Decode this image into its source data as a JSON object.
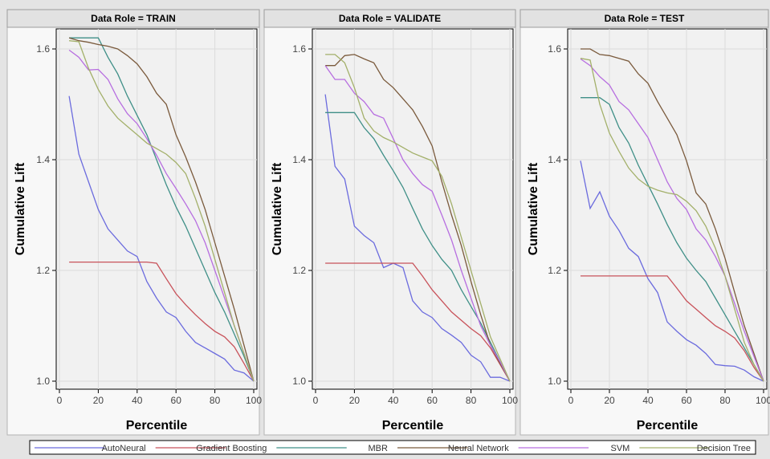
{
  "legend_title": "",
  "chart_data": {
    "type": "line",
    "xlabel": "Percentile",
    "ylabel": "Cumulative Lift",
    "xlim": [
      0,
      100
    ],
    "ylim": [
      1.0,
      1.6
    ],
    "xticks": [
      "0",
      "20",
      "40",
      "60",
      "80",
      "100"
    ],
    "yticks": [
      "1.0",
      "1.2",
      "1.4",
      "1.6"
    ],
    "grid": true,
    "legend_position": "bottom",
    "series_order": [
      "AutoNeural",
      "Gradient Boosting",
      "MBR",
      "Neural Network",
      "SVM",
      "Decision Tree"
    ],
    "colors": {
      "AutoNeural": "#6b6bde",
      "Gradient Boosting": "#c8525a",
      "MBR": "#3f8f87",
      "Neural Network": "#7a5a3c",
      "SVM": "#b76ee0",
      "Decision Tree": "#a3b06a"
    },
    "panels": [
      {
        "title": "Data Role = TRAIN",
        "series": [
          {
            "name": "AutoNeural",
            "x": [
              5,
              10,
              15,
              20,
              25,
              30,
              35,
              40,
              45,
              50,
              55,
              60,
              65,
              70,
              75,
              80,
              85,
              90,
              95,
              100
            ],
            "values": [
              1.515,
              1.41,
              1.36,
              1.31,
              1.275,
              1.255,
              1.235,
              1.225,
              1.18,
              1.15,
              1.125,
              1.115,
              1.09,
              1.07,
              1.06,
              1.05,
              1.04,
              1.02,
              1.015,
              1.0
            ]
          },
          {
            "name": "Gradient Boosting",
            "x": [
              5,
              10,
              15,
              20,
              25,
              30,
              35,
              40,
              45,
              50,
              55,
              60,
              65,
              70,
              75,
              80,
              85,
              90,
              95,
              100
            ],
            "values": [
              1.215,
              1.215,
              1.215,
              1.215,
              1.215,
              1.215,
              1.215,
              1.215,
              1.215,
              1.213,
              1.185,
              1.158,
              1.138,
              1.12,
              1.104,
              1.09,
              1.08,
              1.062,
              1.032,
              1.0
            ]
          },
          {
            "name": "MBR",
            "x": [
              5,
              10,
              15,
              20,
              25,
              30,
              35,
              40,
              45,
              50,
              55,
              60,
              65,
              70,
              75,
              80,
              85,
              90,
              95,
              100
            ],
            "values": [
              1.62,
              1.62,
              1.62,
              1.62,
              1.585,
              1.555,
              1.515,
              1.48,
              1.445,
              1.4,
              1.355,
              1.315,
              1.28,
              1.24,
              1.2,
              1.16,
              1.125,
              1.085,
              1.045,
              1.0
            ]
          },
          {
            "name": "Neural Network",
            "x": [
              5,
              10,
              15,
              20,
              25,
              30,
              35,
              40,
              45,
              50,
              55,
              60,
              65,
              70,
              75,
              80,
              85,
              90,
              95,
              100
            ],
            "values": [
              1.62,
              1.615,
              1.612,
              1.608,
              1.605,
              1.6,
              1.588,
              1.573,
              1.55,
              1.52,
              1.5,
              1.445,
              1.405,
              1.36,
              1.31,
              1.25,
              1.19,
              1.13,
              1.065,
              1.0
            ]
          },
          {
            "name": "SVM",
            "x": [
              5,
              10,
              15,
              20,
              25,
              30,
              35,
              40,
              45,
              50,
              55,
              60,
              65,
              70,
              75,
              80,
              85,
              90,
              95,
              100
            ],
            "values": [
              1.598,
              1.585,
              1.562,
              1.563,
              1.545,
              1.51,
              1.483,
              1.465,
              1.438,
              1.408,
              1.375,
              1.348,
              1.32,
              1.29,
              1.25,
              1.2,
              1.15,
              1.1,
              1.05,
              1.0
            ]
          },
          {
            "name": "Decision Tree",
            "x": [
              5,
              10,
              15,
              20,
              25,
              30,
              35,
              40,
              45,
              50,
              55,
              60,
              65,
              70,
              75,
              80,
              85,
              90,
              95,
              100
            ],
            "values": [
              1.615,
              1.613,
              1.565,
              1.527,
              1.497,
              1.475,
              1.46,
              1.445,
              1.43,
              1.42,
              1.41,
              1.395,
              1.375,
              1.33,
              1.28,
              1.22,
              1.16,
              1.1,
              1.05,
              1.0
            ]
          }
        ]
      },
      {
        "title": "Data Role = VALIDATE",
        "series": [
          {
            "name": "AutoNeural",
            "x": [
              5,
              10,
              15,
              20,
              25,
              30,
              35,
              40,
              45,
              50,
              55,
              60,
              65,
              70,
              75,
              80,
              85,
              90,
              95,
              100
            ],
            "values": [
              1.518,
              1.388,
              1.365,
              1.28,
              1.263,
              1.25,
              1.205,
              1.213,
              1.205,
              1.145,
              1.125,
              1.115,
              1.095,
              1.083,
              1.07,
              1.047,
              1.035,
              1.007,
              1.007,
              1.0
            ]
          },
          {
            "name": "Gradient Boosting",
            "x": [
              5,
              10,
              15,
              20,
              25,
              30,
              35,
              40,
              45,
              50,
              55,
              60,
              65,
              70,
              75,
              80,
              85,
              90,
              95,
              100
            ],
            "values": [
              1.213,
              1.213,
              1.213,
              1.213,
              1.213,
              1.213,
              1.213,
              1.213,
              1.213,
              1.213,
              1.19,
              1.165,
              1.145,
              1.125,
              1.11,
              1.095,
              1.082,
              1.06,
              1.03,
              1.0
            ]
          },
          {
            "name": "MBR",
            "x": [
              5,
              10,
              15,
              20,
              25,
              30,
              35,
              40,
              45,
              50,
              55,
              60,
              65,
              70,
              75,
              80,
              85,
              90,
              95,
              100
            ],
            "values": [
              1.485,
              1.485,
              1.485,
              1.485,
              1.458,
              1.438,
              1.408,
              1.38,
              1.35,
              1.312,
              1.275,
              1.245,
              1.22,
              1.2,
              1.165,
              1.135,
              1.105,
              1.07,
              1.035,
              1.0
            ]
          },
          {
            "name": "Neural Network",
            "x": [
              5,
              10,
              15,
              20,
              25,
              30,
              35,
              40,
              45,
              50,
              55,
              60,
              65,
              70,
              75,
              80,
              85,
              90,
              95,
              100
            ],
            "values": [
              1.57,
              1.57,
              1.588,
              1.59,
              1.582,
              1.575,
              1.545,
              1.53,
              1.51,
              1.49,
              1.46,
              1.425,
              1.36,
              1.3,
              1.245,
              1.18,
              1.12,
              1.065,
              1.032,
              1.0
            ]
          },
          {
            "name": "SVM",
            "x": [
              5,
              10,
              15,
              20,
              25,
              30,
              35,
              40,
              45,
              50,
              55,
              60,
              65,
              70,
              75,
              80,
              85,
              90,
              95,
              100
            ],
            "values": [
              1.57,
              1.545,
              1.545,
              1.52,
              1.505,
              1.482,
              1.475,
              1.438,
              1.4,
              1.375,
              1.355,
              1.343,
              1.3,
              1.255,
              1.2,
              1.15,
              1.1,
              1.065,
              1.035,
              1.0
            ]
          },
          {
            "name": "Decision Tree",
            "x": [
              5,
              10,
              15,
              20,
              25,
              30,
              35,
              40,
              45,
              50,
              55,
              60,
              65,
              70,
              75,
              80,
              85,
              90,
              95,
              100
            ],
            "values": [
              1.59,
              1.59,
              1.575,
              1.53,
              1.475,
              1.452,
              1.44,
              1.432,
              1.422,
              1.412,
              1.405,
              1.398,
              1.37,
              1.32,
              1.26,
              1.2,
              1.14,
              1.08,
              1.04,
              1.0
            ]
          }
        ]
      },
      {
        "title": "Data Role = TEST",
        "series": [
          {
            "name": "AutoNeural",
            "x": [
              5,
              10,
              15,
              20,
              25,
              30,
              35,
              40,
              45,
              50,
              55,
              60,
              65,
              70,
              75,
              80,
              85,
              90,
              95,
              100
            ],
            "values": [
              1.398,
              1.312,
              1.342,
              1.298,
              1.272,
              1.24,
              1.225,
              1.185,
              1.16,
              1.107,
              1.09,
              1.075,
              1.065,
              1.05,
              1.03,
              1.028,
              1.027,
              1.02,
              1.008,
              1.0
            ]
          },
          {
            "name": "Gradient Boosting",
            "x": [
              5,
              10,
              15,
              20,
              25,
              30,
              35,
              40,
              45,
              50,
              55,
              60,
              65,
              70,
              75,
              80,
              85,
              90,
              95,
              100
            ],
            "values": [
              1.19,
              1.19,
              1.19,
              1.19,
              1.19,
              1.19,
              1.19,
              1.19,
              1.19,
              1.19,
              1.168,
              1.145,
              1.13,
              1.115,
              1.1,
              1.09,
              1.078,
              1.055,
              1.025,
              1.0
            ]
          },
          {
            "name": "MBR",
            "x": [
              5,
              10,
              15,
              20,
              25,
              30,
              35,
              40,
              45,
              50,
              55,
              60,
              65,
              70,
              75,
              80,
              85,
              90,
              95,
              100
            ],
            "values": [
              1.512,
              1.512,
              1.512,
              1.5,
              1.458,
              1.43,
              1.39,
              1.355,
              1.32,
              1.283,
              1.25,
              1.222,
              1.2,
              1.18,
              1.15,
              1.12,
              1.09,
              1.06,
              1.03,
              1.0
            ]
          },
          {
            "name": "Neural Network",
            "x": [
              5,
              10,
              15,
              20,
              25,
              30,
              35,
              40,
              45,
              50,
              55,
              60,
              65,
              70,
              75,
              80,
              85,
              90,
              95,
              100
            ],
            "values": [
              1.6,
              1.6,
              1.59,
              1.588,
              1.583,
              1.578,
              1.555,
              1.538,
              1.505,
              1.475,
              1.445,
              1.398,
              1.34,
              1.32,
              1.275,
              1.222,
              1.16,
              1.1,
              1.05,
              1.0
            ]
          },
          {
            "name": "SVM",
            "x": [
              5,
              10,
              15,
              20,
              25,
              30,
              35,
              40,
              45,
              50,
              55,
              60,
              65,
              70,
              75,
              80,
              85,
              90,
              95,
              100
            ],
            "values": [
              1.582,
              1.57,
              1.55,
              1.535,
              1.505,
              1.49,
              1.465,
              1.44,
              1.4,
              1.36,
              1.33,
              1.31,
              1.275,
              1.255,
              1.225,
              1.19,
              1.14,
              1.09,
              1.045,
              1.0
            ]
          },
          {
            "name": "Decision Tree",
            "x": [
              5,
              10,
              15,
              20,
              25,
              30,
              35,
              40,
              45,
              50,
              55,
              60,
              65,
              70,
              75,
              80,
              85,
              90,
              95,
              100
            ],
            "values": [
              1.583,
              1.58,
              1.5,
              1.448,
              1.415,
              1.385,
              1.365,
              1.352,
              1.345,
              1.34,
              1.337,
              1.325,
              1.308,
              1.28,
              1.24,
              1.19,
              1.13,
              1.07,
              1.03,
              1.0
            ]
          }
        ]
      }
    ]
  }
}
